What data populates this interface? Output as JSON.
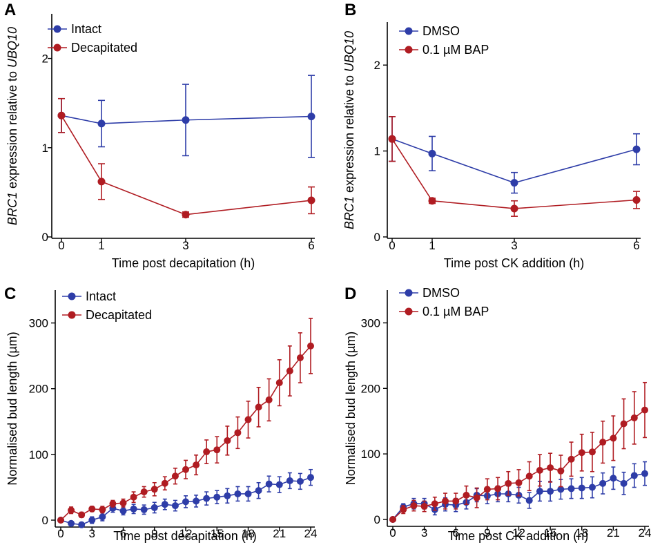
{
  "colors": {
    "blue": "#2e3da8",
    "red": "#b01c22",
    "axis": "#000000"
  },
  "chart_data": [
    {
      "panel": "A",
      "type": "line",
      "xlabel": "Time post decapitation (h)",
      "ylabel_italic": "BRC1",
      "ylabel_mid": " expression relative to ",
      "ylabel_italic2": "UBQ10",
      "xlim": [
        0,
        6
      ],
      "ylim": [
        0,
        2.5
      ],
      "xticks": [
        0,
        1,
        3,
        6
      ],
      "yticks": [
        0,
        1,
        2
      ],
      "legend_position": "top-left",
      "series": [
        {
          "name": "Intact",
          "color": "#2e3da8",
          "x": [
            0,
            1,
            3,
            6
          ],
          "y": [
            1.36,
            1.27,
            1.31,
            1.35
          ],
          "err": [
            0.19,
            0.26,
            0.4,
            0.46
          ]
        },
        {
          "name": "Decapitated",
          "color": "#b01c22",
          "x": [
            0,
            1,
            3,
            6
          ],
          "y": [
            1.36,
            0.62,
            0.25,
            0.41
          ],
          "err": [
            0.19,
            0.2,
            0.03,
            0.15
          ]
        }
      ]
    },
    {
      "panel": "B",
      "type": "line",
      "xlabel": "Time post CK addition (h)",
      "ylabel_italic": "BRC1",
      "ylabel_mid": " expression relative to ",
      "ylabel_italic2": "UBQ10",
      "xlim": [
        0,
        6
      ],
      "ylim": [
        0,
        2.5
      ],
      "xticks": [
        0,
        1,
        3,
        6
      ],
      "yticks": [
        0,
        1,
        2
      ],
      "legend_position": "top-left",
      "series": [
        {
          "name": "DMSO",
          "color": "#2e3da8",
          "x": [
            0,
            1,
            3,
            6
          ],
          "y": [
            1.14,
            0.97,
            0.63,
            1.02
          ],
          "err": [
            0.26,
            0.2,
            0.12,
            0.18
          ]
        },
        {
          "name": "0.1 µM BAP",
          "color": "#b01c22",
          "x": [
            0,
            1,
            3,
            6
          ],
          "y": [
            1.14,
            0.42,
            0.33,
            0.43
          ],
          "err": [
            0.26,
            0.03,
            0.09,
            0.1
          ]
        }
      ]
    },
    {
      "panel": "C",
      "type": "line",
      "xlabel": "Time post decapitation (h)",
      "ylabel": "Normalised bud length (µm)",
      "xlim": [
        0,
        24
      ],
      "ylim": [
        0,
        350
      ],
      "xticks": [
        0,
        3,
        6,
        9,
        12,
        15,
        18,
        21,
        24
      ],
      "yticks": [
        0,
        100,
        200,
        300
      ],
      "legend_position": "top-left",
      "series": [
        {
          "name": "Intact",
          "color": "#2e3da8",
          "x": [
            0,
            1,
            2,
            3,
            4,
            5,
            6,
            7,
            8,
            9,
            10,
            11,
            12,
            13,
            14,
            15,
            16,
            17,
            18,
            19,
            20,
            21,
            22,
            23,
            24
          ],
          "y": [
            0,
            -5,
            -7,
            0,
            5,
            18,
            14,
            17,
            16,
            19,
            24,
            22,
            28,
            29,
            33,
            35,
            37,
            40,
            40,
            45,
            55,
            54,
            60,
            59,
            65
          ],
          "err": [
            3,
            3,
            3,
            5,
            6,
            6,
            6,
            7,
            7,
            8,
            8,
            8,
            9,
            9,
            10,
            10,
            11,
            11,
            11,
            12,
            12,
            12,
            12,
            12,
            12
          ]
        },
        {
          "name": "Decapitated",
          "color": "#b01c22",
          "x": [
            0,
            1,
            2,
            3,
            4,
            5,
            6,
            7,
            8,
            9,
            10,
            11,
            12,
            13,
            14,
            15,
            16,
            17,
            18,
            19,
            20,
            21,
            22,
            23,
            24
          ],
          "y": [
            0,
            15,
            8,
            17,
            16,
            25,
            26,
            35,
            43,
            47,
            56,
            67,
            77,
            84,
            104,
            107,
            121,
            133,
            153,
            172,
            183,
            209,
            227,
            247,
            265
          ],
          "err": [
            3,
            5,
            4,
            4,
            5,
            5,
            6,
            8,
            8,
            10,
            10,
            12,
            14,
            15,
            18,
            20,
            22,
            24,
            28,
            30,
            32,
            35,
            38,
            38,
            42
          ]
        }
      ]
    },
    {
      "panel": "D",
      "type": "line",
      "xlabel": "Time post CK addition (h)",
      "ylabel": "Normalised bud length (µm)",
      "xlim": [
        0,
        24
      ],
      "ylim": [
        0,
        350
      ],
      "xticks": [
        0,
        3,
        6,
        9,
        12,
        15,
        18,
        21,
        24
      ],
      "yticks": [
        0,
        100,
        200,
        300
      ],
      "legend_position": "top-left",
      "series": [
        {
          "name": "DMSO",
          "color": "#2e3da8",
          "x": [
            0,
            1,
            2,
            3,
            4,
            5,
            6,
            7,
            8,
            9,
            10,
            11,
            12,
            13,
            14,
            15,
            16,
            17,
            18,
            19,
            20,
            21,
            22,
            23,
            24
          ],
          "y": [
            0,
            19,
            24,
            24,
            15,
            23,
            22,
            26,
            37,
            36,
            39,
            39,
            37,
            29,
            43,
            43,
            46,
            47,
            48,
            49,
            55,
            63,
            55,
            67,
            70
          ],
          "err": [
            2,
            5,
            8,
            8,
            8,
            10,
            10,
            10,
            10,
            12,
            12,
            12,
            12,
            12,
            15,
            15,
            15,
            15,
            16,
            16,
            16,
            17,
            17,
            18,
            18
          ]
        },
        {
          "name": "0.1 µM BAP",
          "color": "#b01c22",
          "x": [
            0,
            1,
            2,
            3,
            4,
            5,
            6,
            7,
            8,
            9,
            10,
            11,
            12,
            13,
            14,
            15,
            16,
            17,
            18,
            19,
            20,
            21,
            22,
            23,
            24
          ],
          "y": [
            0,
            15,
            21,
            20,
            24,
            28,
            28,
            37,
            33,
            46,
            47,
            55,
            56,
            66,
            75,
            79,
            74,
            92,
            102,
            103,
            118,
            124,
            146,
            155,
            167
          ],
          "err": [
            2,
            6,
            8,
            8,
            10,
            12,
            12,
            14,
            15,
            16,
            17,
            18,
            20,
            22,
            24,
            22,
            24,
            26,
            28,
            30,
            32,
            34,
            38,
            40,
            42
          ]
        }
      ]
    }
  ]
}
